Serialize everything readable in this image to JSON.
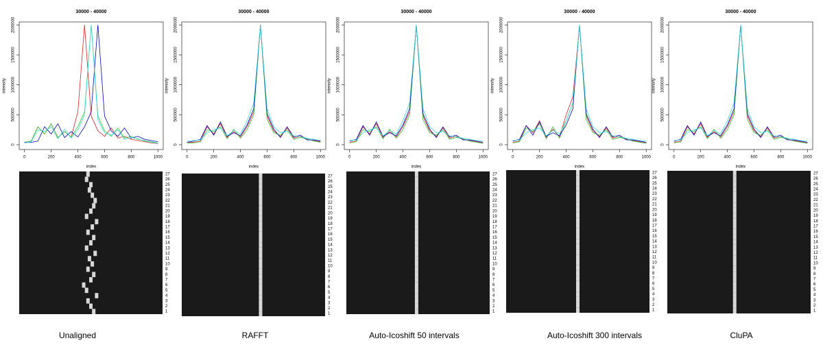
{
  "chart_data": [
    {
      "type": "line",
      "title": "30000 - 40000",
      "xlabel": "index",
      "ylabel": "intensity",
      "x": [
        0,
        50,
        100,
        150,
        200,
        250,
        300,
        350,
        400,
        450,
        500,
        550,
        600,
        650,
        700,
        750,
        800,
        850,
        900,
        950,
        1000
      ],
      "xlim": [
        -40,
        1040
      ],
      "xticks": [
        0,
        200,
        400,
        600,
        800,
        1000
      ],
      "ylim": [
        -80000,
        2050000
      ],
      "yticks": [
        0,
        500000,
        1000000,
        1500000,
        2000000
      ],
      "series": [
        {
          "color": "#e41a1c",
          "values": [
            40000,
            60000,
            300000,
            180000,
            350000,
            120000,
            220000,
            130000,
            550000,
            2000000,
            480000,
            230000,
            140000,
            280000,
            110000,
            140000,
            90000,
            70000,
            50000,
            30000,
            20000
          ]
        },
        {
          "color": "#33cc33",
          "values": [
            40000,
            60000,
            300000,
            180000,
            350000,
            120000,
            220000,
            130000,
            300000,
            550000,
            2000000,
            480000,
            230000,
            140000,
            280000,
            110000,
            140000,
            90000,
            70000,
            50000,
            30000
          ]
        },
        {
          "color": "#0000cc",
          "values": [
            40000,
            40000,
            60000,
            300000,
            180000,
            350000,
            120000,
            220000,
            130000,
            300000,
            550000,
            2000000,
            480000,
            230000,
            140000,
            280000,
            110000,
            140000,
            90000,
            70000,
            50000
          ]
        },
        {
          "color": "#33dddd",
          "values": [
            30000,
            50000,
            250000,
            220000,
            300000,
            100000,
            260000,
            110000,
            250000,
            500000,
            2000000,
            420000,
            200000,
            160000,
            250000,
            90000,
            120000,
            100000,
            60000,
            40000,
            25000
          ]
        }
      ]
    },
    {
      "type": "heatmap",
      "caption": "Unaligned",
      "xlim": [
        0,
        1000
      ],
      "rows": [
        1,
        2,
        3,
        4,
        5,
        6,
        7,
        8,
        9,
        10,
        11,
        12,
        13,
        14,
        15,
        16,
        17,
        18,
        19,
        20,
        21,
        22,
        23,
        24,
        25,
        26,
        27
      ],
      "peaks": [
        520,
        500,
        480,
        540,
        470,
        450,
        500,
        520,
        480,
        510,
        490,
        530,
        470,
        500,
        520,
        480,
        510,
        540,
        470,
        500,
        520,
        530,
        510,
        490,
        500,
        470,
        480
      ]
    },
    {
      "type": "line",
      "title": "30000 - 40000",
      "xlabel": "index",
      "ylabel": "intensity",
      "x": [
        0,
        50,
        100,
        150,
        200,
        250,
        300,
        350,
        400,
        450,
        500,
        550,
        600,
        650,
        700,
        750,
        800,
        850,
        900,
        950,
        1000
      ],
      "xlim": [
        -40,
        1040
      ],
      "xticks": [
        0,
        200,
        400,
        600,
        800,
        1000
      ],
      "ylim": [
        -80000,
        2050000
      ],
      "yticks": [
        0,
        500000,
        1000000,
        1500000,
        2000000
      ],
      "series": [
        {
          "color": "#e41a1c",
          "values": [
            40000,
            40000,
            60000,
            300000,
            180000,
            350000,
            120000,
            220000,
            130000,
            300000,
            550000,
            2000000,
            480000,
            230000,
            140000,
            280000,
            110000,
            140000,
            90000,
            70000,
            50000
          ]
        },
        {
          "color": "#33cc33",
          "values": [
            25000,
            30000,
            50000,
            250000,
            220000,
            300000,
            100000,
            260000,
            110000,
            250000,
            500000,
            2000000,
            420000,
            200000,
            160000,
            250000,
            90000,
            120000,
            100000,
            60000,
            40000
          ]
        },
        {
          "color": "#0000cc",
          "values": [
            40000,
            60000,
            90000,
            320000,
            160000,
            380000,
            140000,
            200000,
            150000,
            330000,
            600000,
            2000000,
            520000,
            260000,
            120000,
            300000,
            130000,
            160000,
            80000,
            80000,
            60000
          ]
        },
        {
          "color": "#33dddd",
          "values": [
            60000,
            70000,
            80000,
            200000,
            250000,
            280000,
            150000,
            240000,
            180000,
            400000,
            700000,
            2000000,
            600000,
            300000,
            200000,
            220000,
            150000,
            130000,
            110000,
            90000,
            70000
          ]
        }
      ]
    },
    {
      "type": "heatmap",
      "caption": "RAFFT",
      "xlim": [
        0,
        1000
      ],
      "rows": [
        1,
        2,
        3,
        4,
        5,
        6,
        7,
        8,
        9,
        10,
        11,
        12,
        13,
        14,
        15,
        16,
        17,
        18,
        19,
        20,
        21,
        22,
        23,
        24,
        25,
        26,
        27
      ],
      "peaks": [
        550,
        550,
        550,
        550,
        550,
        550,
        550,
        550,
        550,
        550,
        550,
        550,
        550,
        550,
        550,
        550,
        550,
        550,
        550,
        550,
        550,
        550,
        550,
        550,
        550,
        550,
        550
      ]
    },
    {
      "type": "line",
      "title": "30000 - 40000",
      "xlabel": "index",
      "ylabel": "intensity",
      "x": [
        0,
        50,
        100,
        150,
        200,
        250,
        300,
        350,
        400,
        450,
        500,
        550,
        600,
        650,
        700,
        750,
        800,
        850,
        900,
        950,
        1000
      ],
      "xlim": [
        -40,
        1040
      ],
      "xticks": [
        0,
        200,
        400,
        600,
        800,
        1000
      ],
      "ylim": [
        -80000,
        2050000
      ],
      "yticks": [
        0,
        500000,
        1000000,
        1500000,
        2000000
      ],
      "series": [
        {
          "color": "#e41a1c",
          "values": [
            40000,
            60000,
            300000,
            180000,
            350000,
            120000,
            220000,
            130000,
            300000,
            550000,
            2000000,
            480000,
            230000,
            140000,
            280000,
            110000,
            140000,
            90000,
            70000,
            50000,
            30000
          ]
        },
        {
          "color": "#33cc33",
          "values": [
            30000,
            50000,
            250000,
            220000,
            300000,
            100000,
            260000,
            110000,
            250000,
            500000,
            2000000,
            420000,
            200000,
            160000,
            250000,
            90000,
            120000,
            100000,
            60000,
            40000,
            25000
          ]
        },
        {
          "color": "#0000cc",
          "values": [
            60000,
            90000,
            320000,
            160000,
            380000,
            140000,
            200000,
            150000,
            330000,
            600000,
            2000000,
            520000,
            260000,
            120000,
            300000,
            130000,
            160000,
            80000,
            80000,
            60000,
            40000
          ]
        },
        {
          "color": "#33dddd",
          "values": [
            70000,
            80000,
            200000,
            250000,
            280000,
            150000,
            240000,
            180000,
            400000,
            700000,
            2000000,
            600000,
            300000,
            200000,
            220000,
            150000,
            130000,
            110000,
            90000,
            70000,
            60000
          ]
        }
      ]
    },
    {
      "type": "heatmap",
      "caption": "Auto-Icoshift 50 intervals",
      "xlim": [
        0,
        1000
      ],
      "rows": [
        1,
        2,
        3,
        4,
        5,
        6,
        7,
        8,
        9,
        10,
        11,
        12,
        13,
        14,
        15,
        16,
        17,
        18,
        19,
        20,
        21,
        22,
        23,
        24,
        25,
        26,
        27
      ],
      "peaks": [
        490,
        490,
        490,
        490,
        490,
        490,
        490,
        490,
        490,
        490,
        490,
        490,
        490,
        490,
        490,
        490,
        490,
        490,
        490,
        490,
        490,
        490,
        490,
        490,
        490,
        490,
        490
      ]
    },
    {
      "type": "line",
      "title": "30000 - 40000",
      "xlabel": "index",
      "ylabel": "intensity",
      "x": [
        0,
        50,
        100,
        150,
        200,
        250,
        300,
        350,
        400,
        450,
        500,
        550,
        600,
        650,
        700,
        750,
        800,
        850,
        900,
        950,
        1000
      ],
      "xlim": [
        -40,
        1040
      ],
      "xticks": [
        0,
        200,
        400,
        600,
        800,
        1000
      ],
      "ylim": [
        -80000,
        2050000
      ],
      "yticks": [
        0,
        500000,
        1000000,
        1500000,
        2000000
      ],
      "series": [
        {
          "color": "#e41a1c",
          "values": [
            40000,
            60000,
            320000,
            200000,
            400000,
            120000,
            260000,
            130000,
            500000,
            800000,
            2000000,
            480000,
            230000,
            140000,
            280000,
            110000,
            140000,
            90000,
            70000,
            50000,
            30000
          ]
        },
        {
          "color": "#33cc33",
          "values": [
            30000,
            50000,
            280000,
            220000,
            350000,
            100000,
            300000,
            110000,
            400000,
            700000,
            2000000,
            420000,
            200000,
            160000,
            250000,
            90000,
            120000,
            100000,
            60000,
            40000,
            25000
          ]
        },
        {
          "color": "#0000cc",
          "values": [
            60000,
            90000,
            320000,
            160000,
            380000,
            140000,
            200000,
            150000,
            330000,
            600000,
            2000000,
            520000,
            260000,
            120000,
            300000,
            130000,
            160000,
            80000,
            80000,
            60000,
            40000
          ]
        },
        {
          "color": "#33dddd",
          "values": [
            70000,
            80000,
            200000,
            250000,
            280000,
            150000,
            240000,
            180000,
            400000,
            700000,
            2000000,
            600000,
            300000,
            200000,
            220000,
            150000,
            130000,
            110000,
            90000,
            70000,
            60000
          ]
        }
      ]
    },
    {
      "type": "heatmap",
      "caption": "Auto-Icoshift 300 intervals",
      "xlim": [
        0,
        1000
      ],
      "rows": [
        1,
        2,
        3,
        4,
        5,
        6,
        7,
        8,
        9,
        10,
        11,
        12,
        13,
        14,
        15,
        16,
        17,
        18,
        19,
        20,
        21,
        22,
        23,
        24,
        25,
        26,
        27
      ],
      "peaks": [
        500,
        500,
        500,
        500,
        500,
        500,
        500,
        500,
        500,
        500,
        500,
        500,
        500,
        500,
        500,
        500,
        500,
        500,
        500,
        500,
        500,
        500,
        500,
        500,
        500,
        500,
        500
      ]
    },
    {
      "type": "line",
      "title": "30000 - 40000",
      "xlabel": "index",
      "ylabel": "intensity",
      "x": [
        0,
        50,
        100,
        150,
        200,
        250,
        300,
        350,
        400,
        450,
        500,
        550,
        600,
        650,
        700,
        750,
        800,
        850,
        900,
        950,
        1000
      ],
      "xlim": [
        -40,
        1040
      ],
      "xticks": [
        0,
        200,
        400,
        600,
        800,
        1000
      ],
      "ylim": [
        -80000,
        2050000
      ],
      "yticks": [
        0,
        500000,
        1000000,
        1500000,
        2000000
      ],
      "series": [
        {
          "color": "#e41a1c",
          "values": [
            40000,
            60000,
            300000,
            180000,
            350000,
            120000,
            220000,
            130000,
            300000,
            550000,
            2000000,
            480000,
            230000,
            140000,
            280000,
            110000,
            140000,
            90000,
            70000,
            50000,
            30000
          ]
        },
        {
          "color": "#33cc33",
          "values": [
            30000,
            50000,
            250000,
            220000,
            300000,
            100000,
            260000,
            110000,
            250000,
            500000,
            2000000,
            420000,
            200000,
            160000,
            250000,
            90000,
            120000,
            100000,
            60000,
            40000,
            25000
          ]
        },
        {
          "color": "#0000cc",
          "values": [
            60000,
            90000,
            320000,
            160000,
            380000,
            140000,
            200000,
            150000,
            330000,
            600000,
            2000000,
            520000,
            260000,
            120000,
            300000,
            130000,
            160000,
            80000,
            80000,
            60000,
            40000
          ]
        },
        {
          "color": "#33dddd",
          "values": [
            70000,
            80000,
            200000,
            250000,
            280000,
            150000,
            240000,
            180000,
            400000,
            700000,
            2000000,
            600000,
            300000,
            200000,
            220000,
            150000,
            130000,
            110000,
            90000,
            70000,
            60000
          ]
        }
      ]
    },
    {
      "type": "heatmap",
      "caption": "CluPA",
      "xlim": [
        0,
        1000
      ],
      "rows": [
        1,
        2,
        3,
        4,
        5,
        6,
        7,
        8,
        9,
        10,
        11,
        12,
        13,
        14,
        15,
        16,
        17,
        18,
        19,
        20,
        21,
        22,
        23,
        24,
        25,
        26,
        27
      ],
      "peaks": [
        470,
        470,
        470,
        470,
        470,
        470,
        470,
        470,
        470,
        470,
        470,
        470,
        470,
        470,
        470,
        470,
        470,
        470,
        470,
        470,
        470,
        470,
        470,
        470,
        470,
        470,
        470
      ]
    }
  ]
}
